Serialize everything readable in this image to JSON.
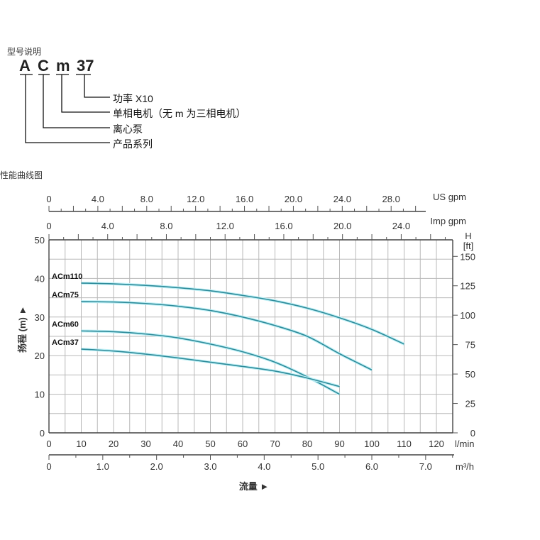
{
  "model_section": {
    "title": "型号说明",
    "code_parts": [
      "A",
      "C",
      "m",
      "37"
    ],
    "explanations": [
      "功率 X10",
      "单相电机（无 m 为三相电机）",
      "离心泵",
      "产品系列"
    ]
  },
  "curve_section": {
    "title": "性能曲线图"
  },
  "chart_data": {
    "type": "line",
    "title": "性能曲线图",
    "xlabel": "流量 ►",
    "ylabel": "扬程 (m) ►",
    "y2label": "H [ft]",
    "x_unit": "l/min",
    "x2_unit": "m³/h",
    "x_top_units": [
      "US gpm",
      "Imp gpm"
    ],
    "xlim": [
      0,
      125
    ],
    "ylim": [
      0,
      50
    ],
    "grid": true,
    "x_ticks": [
      0,
      10,
      20,
      30,
      40,
      50,
      60,
      70,
      80,
      90,
      100,
      110,
      120
    ],
    "y_ticks": [
      0,
      10,
      20,
      30,
      40,
      50
    ],
    "y2_ticks": [
      0,
      25,
      50,
      75,
      100,
      125,
      150
    ],
    "m3h_ticks": [
      "0",
      "1.0",
      "2.0",
      "3.0",
      "4.0",
      "5.0",
      "6.0",
      "7.0"
    ],
    "us_gpm_ticks": [
      "0",
      "4.0",
      "8.0",
      "12.0",
      "16.0",
      "20.0",
      "24.0",
      "28.0"
    ],
    "imp_gpm_ticks": [
      "0",
      "4.0",
      "8.0",
      "12.0",
      "16.0",
      "20.0",
      "24.0"
    ],
    "series": [
      {
        "name": "ACm110",
        "x": [
          10,
          20,
          30,
          40,
          50,
          60,
          70,
          80,
          90,
          100,
          110
        ],
        "values": [
          38.8,
          38.6,
          38.2,
          37.6,
          36.8,
          35.6,
          34.2,
          32.3,
          29.8,
          26.8,
          23.0
        ]
      },
      {
        "name": "ACm75",
        "x": [
          10,
          20,
          30,
          40,
          50,
          60,
          70,
          80,
          90,
          100
        ],
        "values": [
          34.0,
          33.9,
          33.5,
          32.8,
          31.7,
          30.0,
          27.8,
          25.0,
          20.5,
          16.3
        ]
      },
      {
        "name": "ACm60",
        "x": [
          10,
          20,
          30,
          40,
          50,
          60,
          70,
          80,
          90
        ],
        "values": [
          26.4,
          26.2,
          25.6,
          24.6,
          23.0,
          21.0,
          18.3,
          14.5,
          10.0
        ]
      },
      {
        "name": "ACm37",
        "x": [
          10,
          20,
          30,
          40,
          50,
          60,
          70,
          80,
          90
        ],
        "values": [
          21.7,
          21.2,
          20.4,
          19.4,
          18.3,
          17.2,
          16.0,
          14.2,
          12.0
        ]
      }
    ],
    "curve_color": "#2e8b9a"
  }
}
